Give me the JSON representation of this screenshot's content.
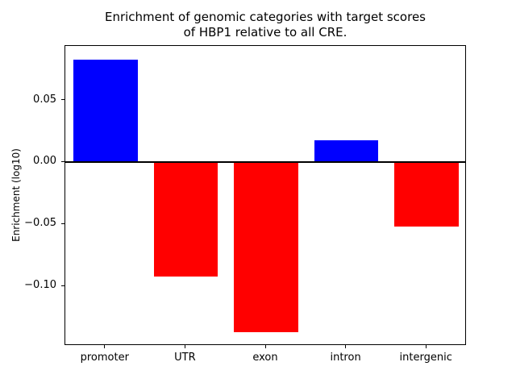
{
  "title": {
    "line1": "Enrichment of genomic categories with target scores",
    "line2": "of HBP1 relative to all CRE."
  },
  "ylabel": "Enrichment (log10)",
  "chart_data": {
    "type": "bar",
    "title": "Enrichment of genomic categories with target scores\nof HBP1 relative to all CRE.",
    "xlabel": "",
    "ylabel": "Enrichment (log10)",
    "categories": [
      "promoter",
      "UTR",
      "exon",
      "intron",
      "intergenic"
    ],
    "values": [
      0.083,
      -0.092,
      -0.137,
      0.018,
      -0.052
    ],
    "ylim": [
      -0.148,
      0.094
    ],
    "yticks": [
      0.05,
      0.0,
      -0.05,
      -0.1
    ],
    "ytick_labels": [
      "0.05",
      "0.00",
      "−0.05",
      "−0.10"
    ],
    "colors": {
      "positive": "#0000ff",
      "negative": "#ff0000",
      "axis": "#000000",
      "background": "#ffffff"
    },
    "grid": false,
    "legend": false,
    "zero_line": true,
    "bar_width_fraction": 0.8
  }
}
